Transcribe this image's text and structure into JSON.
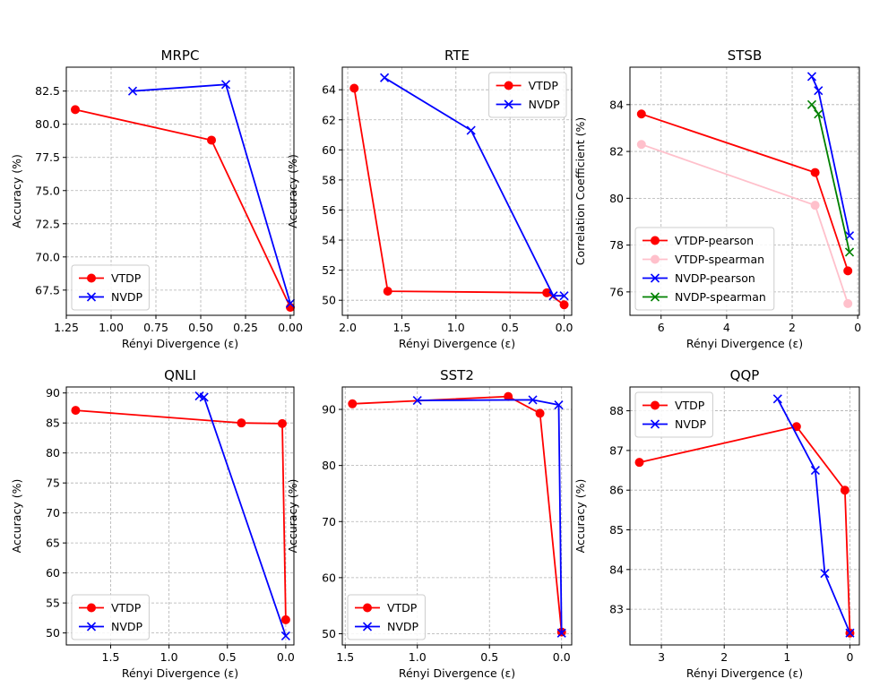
{
  "chart_data": [
    {
      "type": "line",
      "title": "MRPC",
      "xlabel": "Rényi Divergence (ε)",
      "ylabel": "Accuracy (%)",
      "xlim": [
        1.25,
        -0.02
      ],
      "ylim": [
        65.6,
        84.3
      ],
      "xticks": [
        "1.25",
        "1.00",
        "0.75",
        "0.50",
        "0.25",
        "0.00"
      ],
      "yticks": [
        "67.5",
        "70.0",
        "72.5",
        "75.0",
        "77.5",
        "80.0",
        "82.5"
      ],
      "legend": "lower-left",
      "series": [
        {
          "name": "VTDP",
          "color": "#ff0000",
          "marker": "circle",
          "x": [
            1.2,
            0.44,
            0.0
          ],
          "y": [
            81.1,
            78.8,
            66.2
          ]
        },
        {
          "name": "NVDP",
          "color": "#0000ff",
          "marker": "x",
          "x": [
            0.88,
            0.36,
            0.0
          ],
          "y": [
            82.5,
            83.0,
            66.5
          ]
        }
      ]
    },
    {
      "type": "line",
      "title": "RTE",
      "xlabel": "Rényi Divergence (ε)",
      "ylabel": "Accuracy (%)",
      "xlim": [
        2.05,
        -0.07
      ],
      "ylim": [
        49.0,
        65.5
      ],
      "xticks": [
        "2.0",
        "1.5",
        "1.0",
        "0.5",
        "0.0"
      ],
      "yticks": [
        "50",
        "52",
        "54",
        "56",
        "58",
        "60",
        "62",
        "64"
      ],
      "legend": "upper-right",
      "series": [
        {
          "name": "VTDP",
          "color": "#ff0000",
          "marker": "circle",
          "x": [
            1.94,
            1.63,
            0.16,
            0.0
          ],
          "y": [
            64.1,
            50.6,
            50.5,
            49.7
          ]
        },
        {
          "name": "NVDP",
          "color": "#0000ff",
          "marker": "x",
          "x": [
            1.66,
            0.86,
            0.1,
            0.0
          ],
          "y": [
            64.8,
            61.3,
            50.3,
            50.3
          ]
        }
      ]
    },
    {
      "type": "line",
      "title": "STSB",
      "xlabel": "Rényi Divergence (ε)",
      "ylabel": "Correlation Coefficient (%)",
      "xlim": [
        6.95,
        -0.05
      ],
      "ylim": [
        75.0,
        85.6
      ],
      "xticks": [
        "6",
        "4",
        "2",
        "0"
      ],
      "yticks": [
        "76",
        "78",
        "80",
        "82",
        "84"
      ],
      "legend": "lower-left",
      "series": [
        {
          "name": "VTDP-pearson",
          "color": "#ff0000",
          "marker": "circle",
          "x": [
            6.6,
            1.3,
            0.3
          ],
          "y": [
            83.6,
            81.1,
            76.9
          ]
        },
        {
          "name": "VTDP-spearman",
          "color": "#ffc0cb",
          "marker": "circle",
          "x": [
            6.6,
            1.3,
            0.3
          ],
          "y": [
            82.3,
            79.7,
            75.5
          ]
        },
        {
          "name": "NVDP-pearson",
          "color": "#0000ff",
          "marker": "x",
          "x": [
            1.4,
            1.2,
            0.25
          ],
          "y": [
            85.2,
            84.6,
            78.4
          ]
        },
        {
          "name": "NVDP-spearman",
          "color": "#008000",
          "marker": "x",
          "x": [
            1.4,
            1.2,
            0.25
          ],
          "y": [
            84.0,
            83.6,
            77.7
          ]
        }
      ]
    },
    {
      "type": "line",
      "title": "QNLI",
      "xlabel": "Rényi Divergence (ε)",
      "ylabel": "Accuracy (%)",
      "xlim": [
        1.88,
        -0.07
      ],
      "ylim": [
        48.0,
        91.0
      ],
      "xticks": [
        "1.5",
        "1.0",
        "0.5",
        "0.0"
      ],
      "yticks": [
        "50",
        "55",
        "60",
        "65",
        "70",
        "75",
        "80",
        "85",
        "90"
      ],
      "legend": "lower-left",
      "series": [
        {
          "name": "VTDP",
          "color": "#ff0000",
          "marker": "circle",
          "x": [
            1.8,
            0.38,
            0.03,
            0.0
          ],
          "y": [
            87.1,
            85.0,
            84.9,
            52.2
          ]
        },
        {
          "name": "NVDP",
          "color": "#0000ff",
          "marker": "x",
          "x": [
            0.74,
            0.7,
            0.0
          ],
          "y": [
            89.5,
            89.3,
            49.5
          ]
        }
      ]
    },
    {
      "type": "line",
      "title": "SST2",
      "xlabel": "Rényi Divergence (ε)",
      "ylabel": "Accuracy (%)",
      "xlim": [
        1.52,
        -0.07
      ],
      "ylim": [
        48.0,
        94.0
      ],
      "xticks": [
        "1.5",
        "1.0",
        "0.5",
        "0.0"
      ],
      "yticks": [
        "50",
        "60",
        "70",
        "80",
        "90"
      ],
      "legend": "lower-left",
      "series": [
        {
          "name": "VTDP",
          "color": "#ff0000",
          "marker": "circle",
          "x": [
            1.45,
            0.37,
            0.15,
            0.0
          ],
          "y": [
            91.0,
            92.3,
            89.3,
            50.3
          ]
        },
        {
          "name": "NVDP",
          "color": "#0000ff",
          "marker": "x",
          "x": [
            1.0,
            0.2,
            0.02,
            0.0
          ],
          "y": [
            91.6,
            91.7,
            90.8,
            50.1
          ]
        }
      ]
    },
    {
      "type": "line",
      "title": "QQP",
      "xlabel": "Rényi Divergence (ε)",
      "ylabel": "Accuracy (%)",
      "xlim": [
        3.5,
        -0.15
      ],
      "ylim": [
        82.1,
        88.6
      ],
      "xticks": [
        "3",
        "2",
        "1",
        "0"
      ],
      "yticks": [
        "83",
        "84",
        "85",
        "86",
        "87",
        "88"
      ],
      "legend": "upper-left",
      "series": [
        {
          "name": "VTDP",
          "color": "#ff0000",
          "marker": "circle",
          "x": [
            3.35,
            0.85,
            0.08,
            0.0
          ],
          "y": [
            86.7,
            87.6,
            86.0,
            82.4
          ]
        },
        {
          "name": "NVDP",
          "color": "#0000ff",
          "marker": "x",
          "x": [
            1.15,
            0.55,
            0.4,
            0.0
          ],
          "y": [
            88.3,
            86.5,
            83.9,
            82.4
          ]
        }
      ]
    }
  ]
}
